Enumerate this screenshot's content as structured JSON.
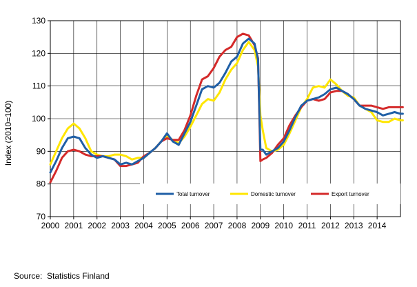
{
  "chart_data": {
    "type": "line",
    "ylabel": "Index (2010=100)",
    "ylim": [
      70,
      130
    ],
    "yticks": [
      70,
      80,
      90,
      100,
      110,
      120,
      130
    ],
    "xlim": [
      2000,
      2015
    ],
    "xticks": [
      "2000",
      "2001",
      "2002",
      "2003",
      "2004",
      "2005",
      "2006",
      "2007",
      "2008",
      "2009",
      "2010",
      "2011",
      "2012",
      "2013",
      "2014"
    ],
    "grid": true,
    "legend_position": "bottom-right",
    "series": [
      {
        "name": "Total turnover",
        "color": "#1f5fa6",
        "points": [
          [
            2000.0,
            83.5
          ],
          [
            2000.25,
            87
          ],
          [
            2000.5,
            91
          ],
          [
            2000.75,
            94
          ],
          [
            2001.0,
            94.5
          ],
          [
            2001.25,
            94
          ],
          [
            2001.5,
            91
          ],
          [
            2001.75,
            89
          ],
          [
            2002.0,
            88
          ],
          [
            2002.25,
            88.5
          ],
          [
            2002.5,
            88
          ],
          [
            2002.75,
            87.5
          ],
          [
            2003.0,
            86
          ],
          [
            2003.25,
            86.5
          ],
          [
            2003.5,
            86
          ],
          [
            2003.75,
            87
          ],
          [
            2004.0,
            88
          ],
          [
            2004.25,
            89.5
          ],
          [
            2004.5,
            91
          ],
          [
            2004.75,
            93
          ],
          [
            2005.0,
            95.5
          ],
          [
            2005.25,
            93
          ],
          [
            2005.5,
            92
          ],
          [
            2005.75,
            95.5
          ],
          [
            2006.0,
            99
          ],
          [
            2006.25,
            104
          ],
          [
            2006.5,
            109
          ],
          [
            2006.75,
            110
          ],
          [
            2007.0,
            109.5
          ],
          [
            2007.25,
            111
          ],
          [
            2007.5,
            114
          ],
          [
            2007.75,
            117.5
          ],
          [
            2008.0,
            119
          ],
          [
            2008.25,
            123
          ],
          [
            2008.5,
            124.5
          ],
          [
            2008.75,
            123
          ],
          [
            2008.9,
            118
          ],
          [
            2009.0,
            90.5
          ],
          [
            2009.1,
            90.5
          ],
          [
            2009.25,
            89
          ],
          [
            2009.5,
            90
          ],
          [
            2009.75,
            91
          ],
          [
            2010.0,
            93
          ],
          [
            2010.25,
            96.5
          ],
          [
            2010.5,
            100.5
          ],
          [
            2010.75,
            104
          ],
          [
            2011.0,
            105.5
          ],
          [
            2011.25,
            106
          ],
          [
            2011.5,
            106.5
          ],
          [
            2011.75,
            107.5
          ],
          [
            2012.0,
            109
          ],
          [
            2012.25,
            109.5
          ],
          [
            2012.5,
            108.5
          ],
          [
            2012.75,
            107.5
          ],
          [
            2013.0,
            106
          ],
          [
            2013.25,
            104
          ],
          [
            2013.5,
            103
          ],
          [
            2013.75,
            102.5
          ],
          [
            2014.0,
            102
          ],
          [
            2014.25,
            101
          ],
          [
            2014.5,
            101.5
          ],
          [
            2014.75,
            102
          ],
          [
            2015.0,
            101.5
          ],
          [
            2015.1,
            101.5
          ]
        ]
      },
      {
        "name": "Domestic turnover",
        "color": "#ffe600",
        "points": [
          [
            2000.0,
            86
          ],
          [
            2000.25,
            90
          ],
          [
            2000.5,
            94
          ],
          [
            2000.75,
            97
          ],
          [
            2001.0,
            98.5
          ],
          [
            2001.25,
            97
          ],
          [
            2001.5,
            94
          ],
          [
            2001.75,
            90
          ],
          [
            2002.0,
            89
          ],
          [
            2002.25,
            88.5
          ],
          [
            2002.5,
            88.5
          ],
          [
            2002.75,
            89
          ],
          [
            2003.0,
            89
          ],
          [
            2003.25,
            88.5
          ],
          [
            2003.5,
            87.5
          ],
          [
            2003.75,
            88
          ],
          [
            2004.0,
            88
          ],
          [
            2004.25,
            89.5
          ],
          [
            2004.5,
            91
          ],
          [
            2004.75,
            93
          ],
          [
            2005.0,
            94.5
          ],
          [
            2005.25,
            93.5
          ],
          [
            2005.5,
            92.5
          ],
          [
            2005.75,
            94.5
          ],
          [
            2006.0,
            97.5
          ],
          [
            2006.25,
            101
          ],
          [
            2006.5,
            104.5
          ],
          [
            2006.75,
            106
          ],
          [
            2007.0,
            105.5
          ],
          [
            2007.25,
            108
          ],
          [
            2007.5,
            112
          ],
          [
            2007.75,
            115
          ],
          [
            2008.0,
            117
          ],
          [
            2008.25,
            121
          ],
          [
            2008.5,
            123.5
          ],
          [
            2008.75,
            121
          ],
          [
            2008.9,
            116
          ],
          [
            2009.0,
            101
          ],
          [
            2009.1,
            96.5
          ],
          [
            2009.25,
            91
          ],
          [
            2009.5,
            90
          ],
          [
            2009.75,
            90.5
          ],
          [
            2010.0,
            92
          ],
          [
            2010.25,
            95.5
          ],
          [
            2010.5,
            99.5
          ],
          [
            2010.75,
            103.5
          ],
          [
            2011.0,
            106
          ],
          [
            2011.25,
            109.5
          ],
          [
            2011.5,
            110
          ],
          [
            2011.75,
            109.5
          ],
          [
            2012.0,
            112
          ],
          [
            2012.25,
            110.5
          ],
          [
            2012.5,
            108.5
          ],
          [
            2012.75,
            107
          ],
          [
            2013.0,
            106.5
          ],
          [
            2013.25,
            104
          ],
          [
            2013.5,
            103
          ],
          [
            2013.75,
            102
          ],
          [
            2014.0,
            99.5
          ],
          [
            2014.25,
            99
          ],
          [
            2014.5,
            99
          ],
          [
            2014.75,
            100
          ],
          [
            2015.0,
            99.5
          ],
          [
            2015.1,
            99.5
          ]
        ]
      },
      {
        "name": "Export turnover",
        "color": "#d42a2a",
        "points": [
          [
            2000.0,
            80.5
          ],
          [
            2000.25,
            84
          ],
          [
            2000.5,
            88
          ],
          [
            2000.75,
            90
          ],
          [
            2001.0,
            90.5
          ],
          [
            2001.25,
            90
          ],
          [
            2001.5,
            89
          ],
          [
            2001.75,
            88.5
          ],
          [
            2002.0,
            88.5
          ],
          [
            2002.25,
            88.5
          ],
          [
            2002.5,
            88
          ],
          [
            2002.75,
            87.5
          ],
          [
            2003.0,
            85.5
          ],
          [
            2003.25,
            85.5
          ],
          [
            2003.5,
            86
          ],
          [
            2003.75,
            86.5
          ],
          [
            2004.0,
            88.5
          ],
          [
            2004.25,
            89.5
          ],
          [
            2004.5,
            91
          ],
          [
            2004.75,
            93
          ],
          [
            2005.0,
            94
          ],
          [
            2005.25,
            93.5
          ],
          [
            2005.5,
            93.5
          ],
          [
            2005.75,
            96.5
          ],
          [
            2006.0,
            101
          ],
          [
            2006.25,
            107
          ],
          [
            2006.5,
            112
          ],
          [
            2006.75,
            113
          ],
          [
            2007.0,
            115.5
          ],
          [
            2007.25,
            119
          ],
          [
            2007.5,
            121
          ],
          [
            2007.75,
            122
          ],
          [
            2008.0,
            125
          ],
          [
            2008.25,
            126
          ],
          [
            2008.5,
            125.5
          ],
          [
            2008.75,
            122.5
          ],
          [
            2008.9,
            118.5
          ],
          [
            2009.0,
            87
          ],
          [
            2009.1,
            87.5
          ],
          [
            2009.25,
            88
          ],
          [
            2009.5,
            89.5
          ],
          [
            2009.75,
            92
          ],
          [
            2010.0,
            94
          ],
          [
            2010.25,
            98
          ],
          [
            2010.5,
            101
          ],
          [
            2010.75,
            103.5
          ],
          [
            2011.0,
            105.5
          ],
          [
            2011.25,
            106
          ],
          [
            2011.5,
            105.5
          ],
          [
            2011.75,
            106
          ],
          [
            2012.0,
            108
          ],
          [
            2012.25,
            108.5
          ],
          [
            2012.5,
            108.5
          ],
          [
            2012.75,
            107.5
          ],
          [
            2013.0,
            106
          ],
          [
            2013.25,
            104
          ],
          [
            2013.5,
            104
          ],
          [
            2013.75,
            104
          ],
          [
            2014.0,
            103.5
          ],
          [
            2014.25,
            103
          ],
          [
            2014.5,
            103.5
          ],
          [
            2014.75,
            103.5
          ],
          [
            2015.0,
            103.5
          ],
          [
            2015.1,
            103.5
          ]
        ]
      }
    ]
  },
  "source": {
    "label": "Source:",
    "text": "Statistics Finland"
  }
}
